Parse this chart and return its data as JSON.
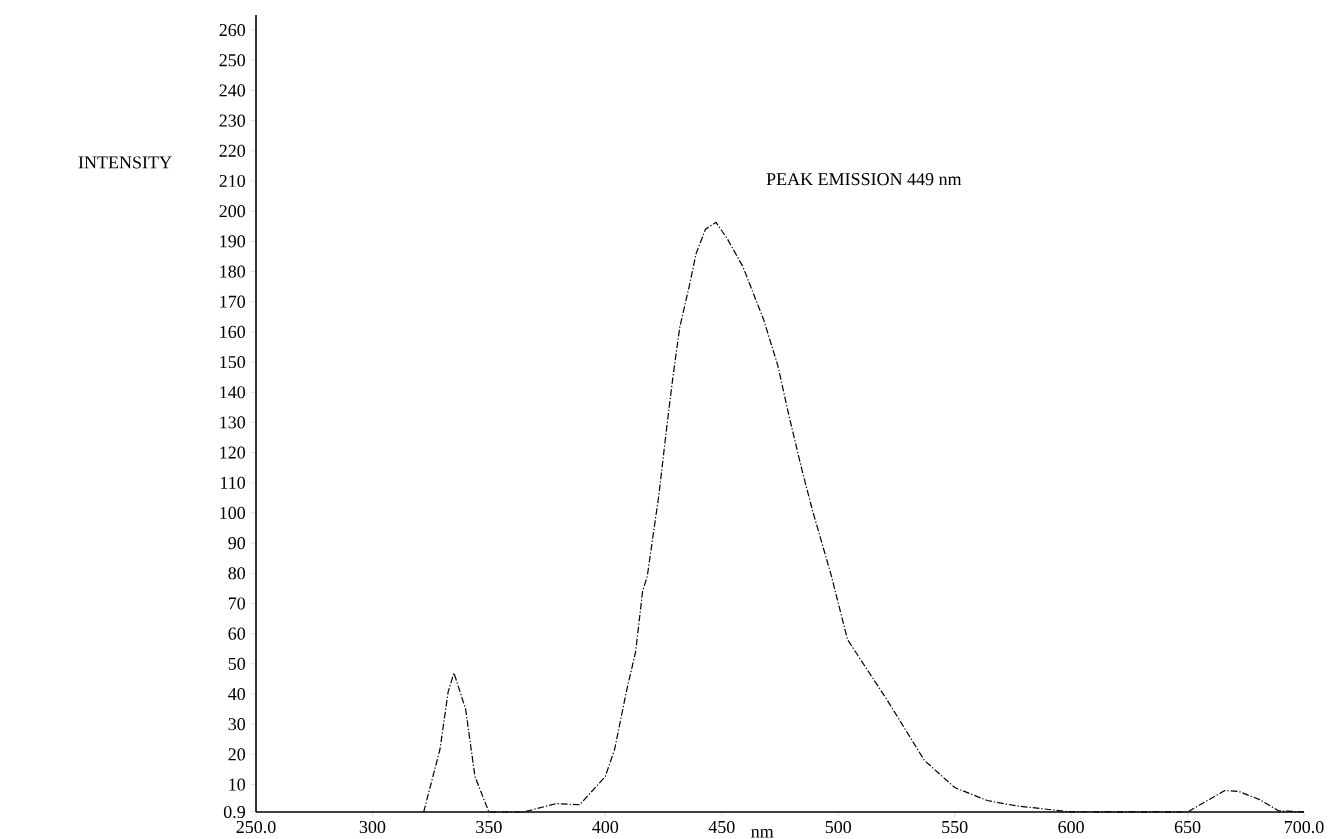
{
  "chart_data": {
    "type": "line",
    "xlabel": "nm",
    "ylabel": "INTENSITY",
    "annotations": [
      "PEAK EMISSION 449 nm"
    ],
    "x": [
      322,
      329,
      332.5,
      335,
      340,
      344,
      350,
      365,
      379,
      389,
      400,
      404,
      409,
      413,
      416,
      418,
      423,
      426,
      429,
      432,
      436,
      439,
      443,
      447.5,
      452.5,
      459,
      468,
      474,
      479,
      484.5,
      489,
      497,
      504,
      521,
      537,
      550,
      564,
      576,
      599,
      650,
      666,
      672,
      681,
      689,
      700
    ],
    "series": [
      {
        "color": "#000000",
        "values": [
          0.9,
          21.7,
          40.7,
          47,
          35,
          12.7,
          0.9,
          0.9,
          3.7,
          3.3,
          12.7,
          21.7,
          40.7,
          54,
          74,
          79,
          106,
          126,
          145,
          161.7,
          175,
          186,
          194,
          196.3,
          190.7,
          181.7,
          164,
          149,
          131.7,
          114,
          100.7,
          79.3,
          58,
          38,
          18,
          9,
          4.7,
          3,
          1,
          0.9,
          8,
          7.7,
          5,
          1.3,
          0.9
        ]
      }
    ],
    "xlim": [
      250,
      700
    ],
    "ylim": [
      0.9,
      265
    ],
    "xticks": [
      {
        "value": 250,
        "label": "250.0"
      },
      300,
      350,
      400,
      450,
      500,
      550,
      600,
      650,
      {
        "value": 700,
        "label": "700.0"
      }
    ],
    "yticks": [
      0.9,
      10,
      20,
      30,
      40,
      50,
      60,
      70,
      80,
      90,
      100,
      110,
      120,
      130,
      140,
      150,
      160,
      170,
      180,
      190,
      200,
      210,
      220,
      230,
      240,
      250,
      260
    ],
    "line_style": "dashed"
  }
}
